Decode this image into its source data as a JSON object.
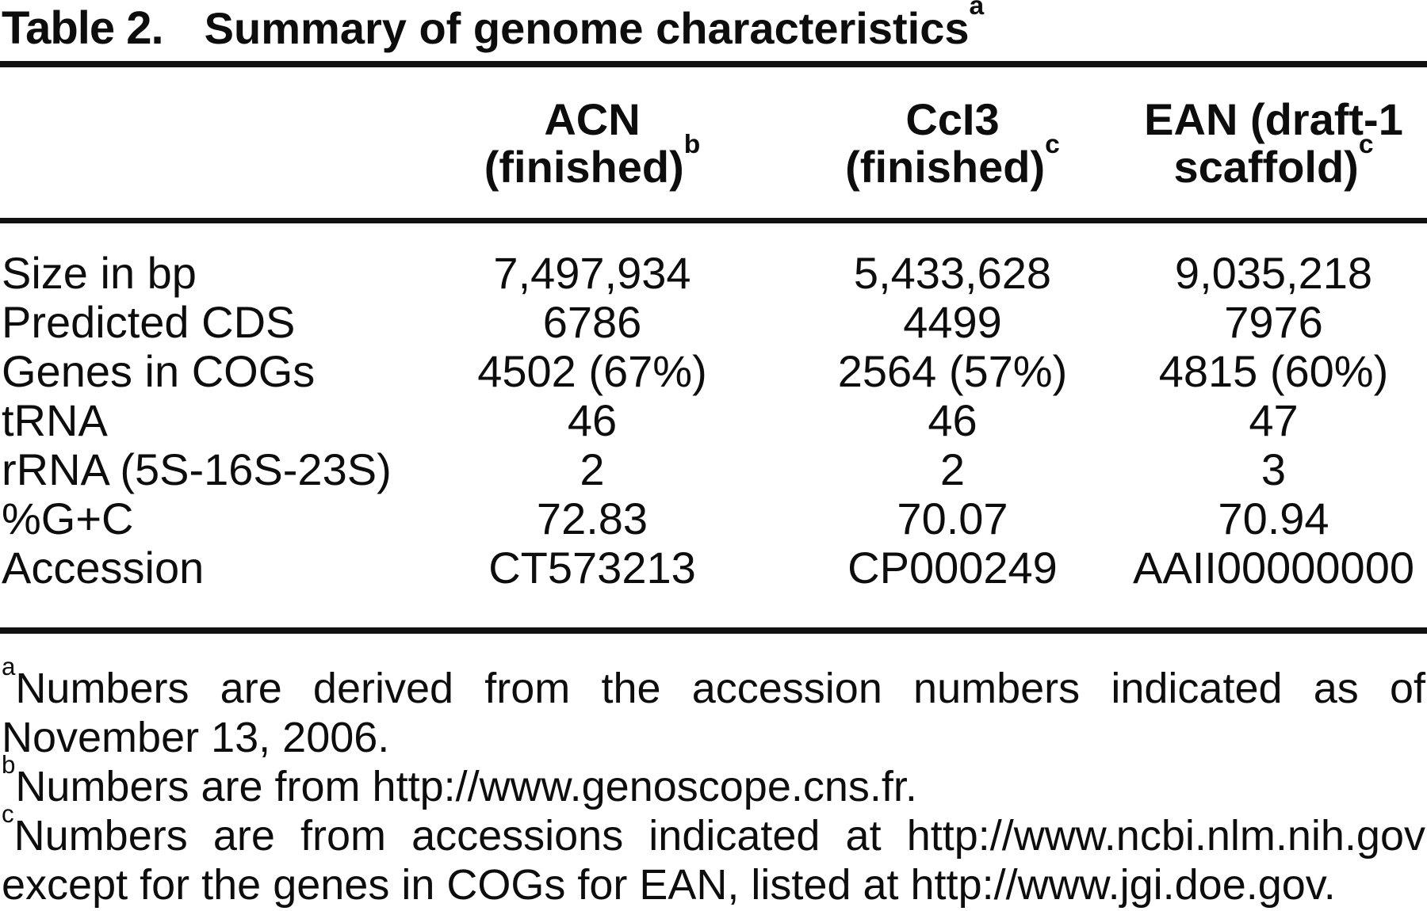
{
  "table": {
    "label": "Table 2.",
    "title": "Summary of genome characteristics",
    "title_superscript": "a",
    "columns": [
      {
        "line1": "ACN",
        "line2": "(finished)",
        "superscript": "b"
      },
      {
        "line1": "CcI3",
        "line2": "(finished)",
        "superscript": "c"
      },
      {
        "line1": "EAN (draft-1",
        "line2": "scaffold)",
        "superscript": "c"
      }
    ],
    "rows": [
      {
        "label": "Size in bp",
        "values": [
          "7,497,934",
          "5,433,628",
          "9,035,218"
        ]
      },
      {
        "label": "Predicted CDS",
        "values": [
          "6786",
          "4499",
          "7976"
        ]
      },
      {
        "label": "Genes in COGs",
        "values": [
          "4502 (67%)",
          "2564 (57%)",
          "4815 (60%)"
        ]
      },
      {
        "label": "tRNA",
        "values": [
          "46",
          "46",
          "47"
        ]
      },
      {
        "label": "rRNA (5S-16S-23S)",
        "values": [
          "2",
          "2",
          "3"
        ]
      },
      {
        "label": "%G+C",
        "values": [
          "72.83",
          "70.07",
          "70.94"
        ]
      },
      {
        "label": "Accession",
        "values": [
          "CT573213",
          "CP000249",
          "AAII00000000"
        ]
      }
    ]
  },
  "footnotes": [
    {
      "superscript": "a",
      "text": "Numbers are derived from the accession numbers indicated as of November 13, 2006."
    },
    {
      "superscript": "b",
      "text": "Numbers are from http://www.genoscope.cns.fr."
    },
    {
      "superscript": "c",
      "text": "Numbers are from accessions indicated at http://www.ncbi.nlm.nih.gov except for the genes in COGs for EAN, listed at http://www.jgi.doe.gov."
    }
  ],
  "colors": {
    "text": "#0d0d0d",
    "rule": "#111111",
    "background": "#ffffff"
  }
}
